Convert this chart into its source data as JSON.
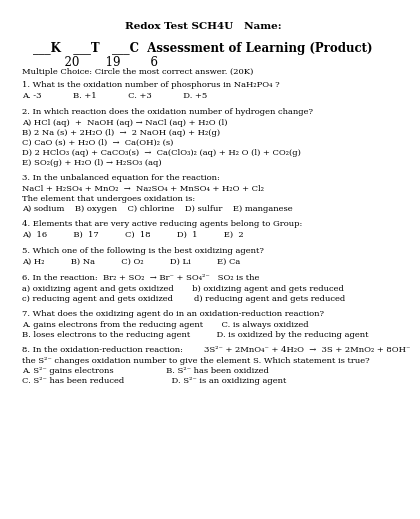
{
  "title": "Redox Test SCH4U   Name:",
  "subtitle_parts": [
    {
      "text": "___K",
      "bold": true
    },
    {
      "text": "   ___T   ___C  ",
      "bold": true
    },
    {
      "text": "Assessment of Learning (Product)",
      "bold": true
    }
  ],
  "subtitle": "___K   ___T   ___C  Assessment of Learning (Product)",
  "scores": "  20       19        6",
  "mc_header": "Multiple Choice: Circle the most correct answer. (20K)",
  "questions": [
    {
      "num": "1.",
      "text": "What is the oxidation number of phosphorus in NaH₂PO₄ ?",
      "options": "A. -3            B. +1            C. +3            D. +5"
    },
    {
      "num": "2.",
      "text": "In which reaction does the oxidation number of hydrogen change?",
      "lines": [
        "A) HCl (aq)  +  NaOH (aq) → NaCl (aq) + H₂O (l)",
        "B) 2 Na (s) + 2H₂O (l)  →  2 NaOH (aq) + H₂(g)",
        "C) CaO (s) + H₂O (l)  →  Ca(OH)₂ (s)",
        "D) 2 HClO₃ (aq) + CaCO₃(s)  →  Ca(ClO₃)₂ (aq) + H₂ O (l) + CO₂(g)",
        "E) SO₂(g) + H₂O (l) → H₂SO₃ (aq)"
      ]
    },
    {
      "num": "3.",
      "text": "In the unbalanced equation for the reaction:",
      "lines2": [
        "NaCl + H₂SO₄ + MnO₂  →  Na₂SO₄ + MnSO₄ + H₂O + Cl₂",
        "The element that undergoes oxidation is:",
        "A) sodium    B) oxygen    C) chlorine    D) sulfur    E) manganese"
      ]
    },
    {
      "num": "4.",
      "text": "Elements that are very active reducing agents belong to Group:",
      "options": "A)  16          B)  17          C)  18          D)  1          E)  2"
    },
    {
      "num": "5.",
      "text": "Which one of the following is the best oxidizing agent?",
      "options": "A) H₂          B) Na          C) O₂          D) Li          E) Ca"
    },
    {
      "num": "6.",
      "text": "In the reaction:  Br₂ + SO₂  → Br⁻ + SO₄²⁻   SO₂ is the",
      "lines": [
        "a) oxidizing agent and gets oxidized       b) oxidizing agent and gets reduced",
        "c) reducing agent and gets oxidized        d) reducing agent and gets reduced"
      ]
    },
    {
      "num": "7.",
      "text": "What does the oxidizing agent do in an oxidation-reduction reaction?",
      "lines": [
        "A. gains electrons from the reducing agent       C. is always oxidized",
        "B. loses electrons to the reducing agent          D. is oxidized by the reducing agent"
      ]
    },
    {
      "num": "8.",
      "text": "In the oxidation-reduction reaction:        3S²⁻ + 2MnO₄⁻ + 4H₂O  →  3S + 2MnO₂ + 8OH⁻",
      "lines": [
        "the S²⁻ changes oxidation number to give the element S. Which statement is true?",
        "A. S²⁻ gains electrons                    B. S²⁻ has been oxidized",
        "C. S²⁻ has been reduced                  D. S²⁻ is an oxidizing agent"
      ]
    }
  ],
  "bg_color": "#ffffff",
  "text_color": "#000000",
  "font_size_title": 7.5,
  "font_size_subtitle": 8.5,
  "font_size_scores": 8.5,
  "font_size_body": 6.0
}
